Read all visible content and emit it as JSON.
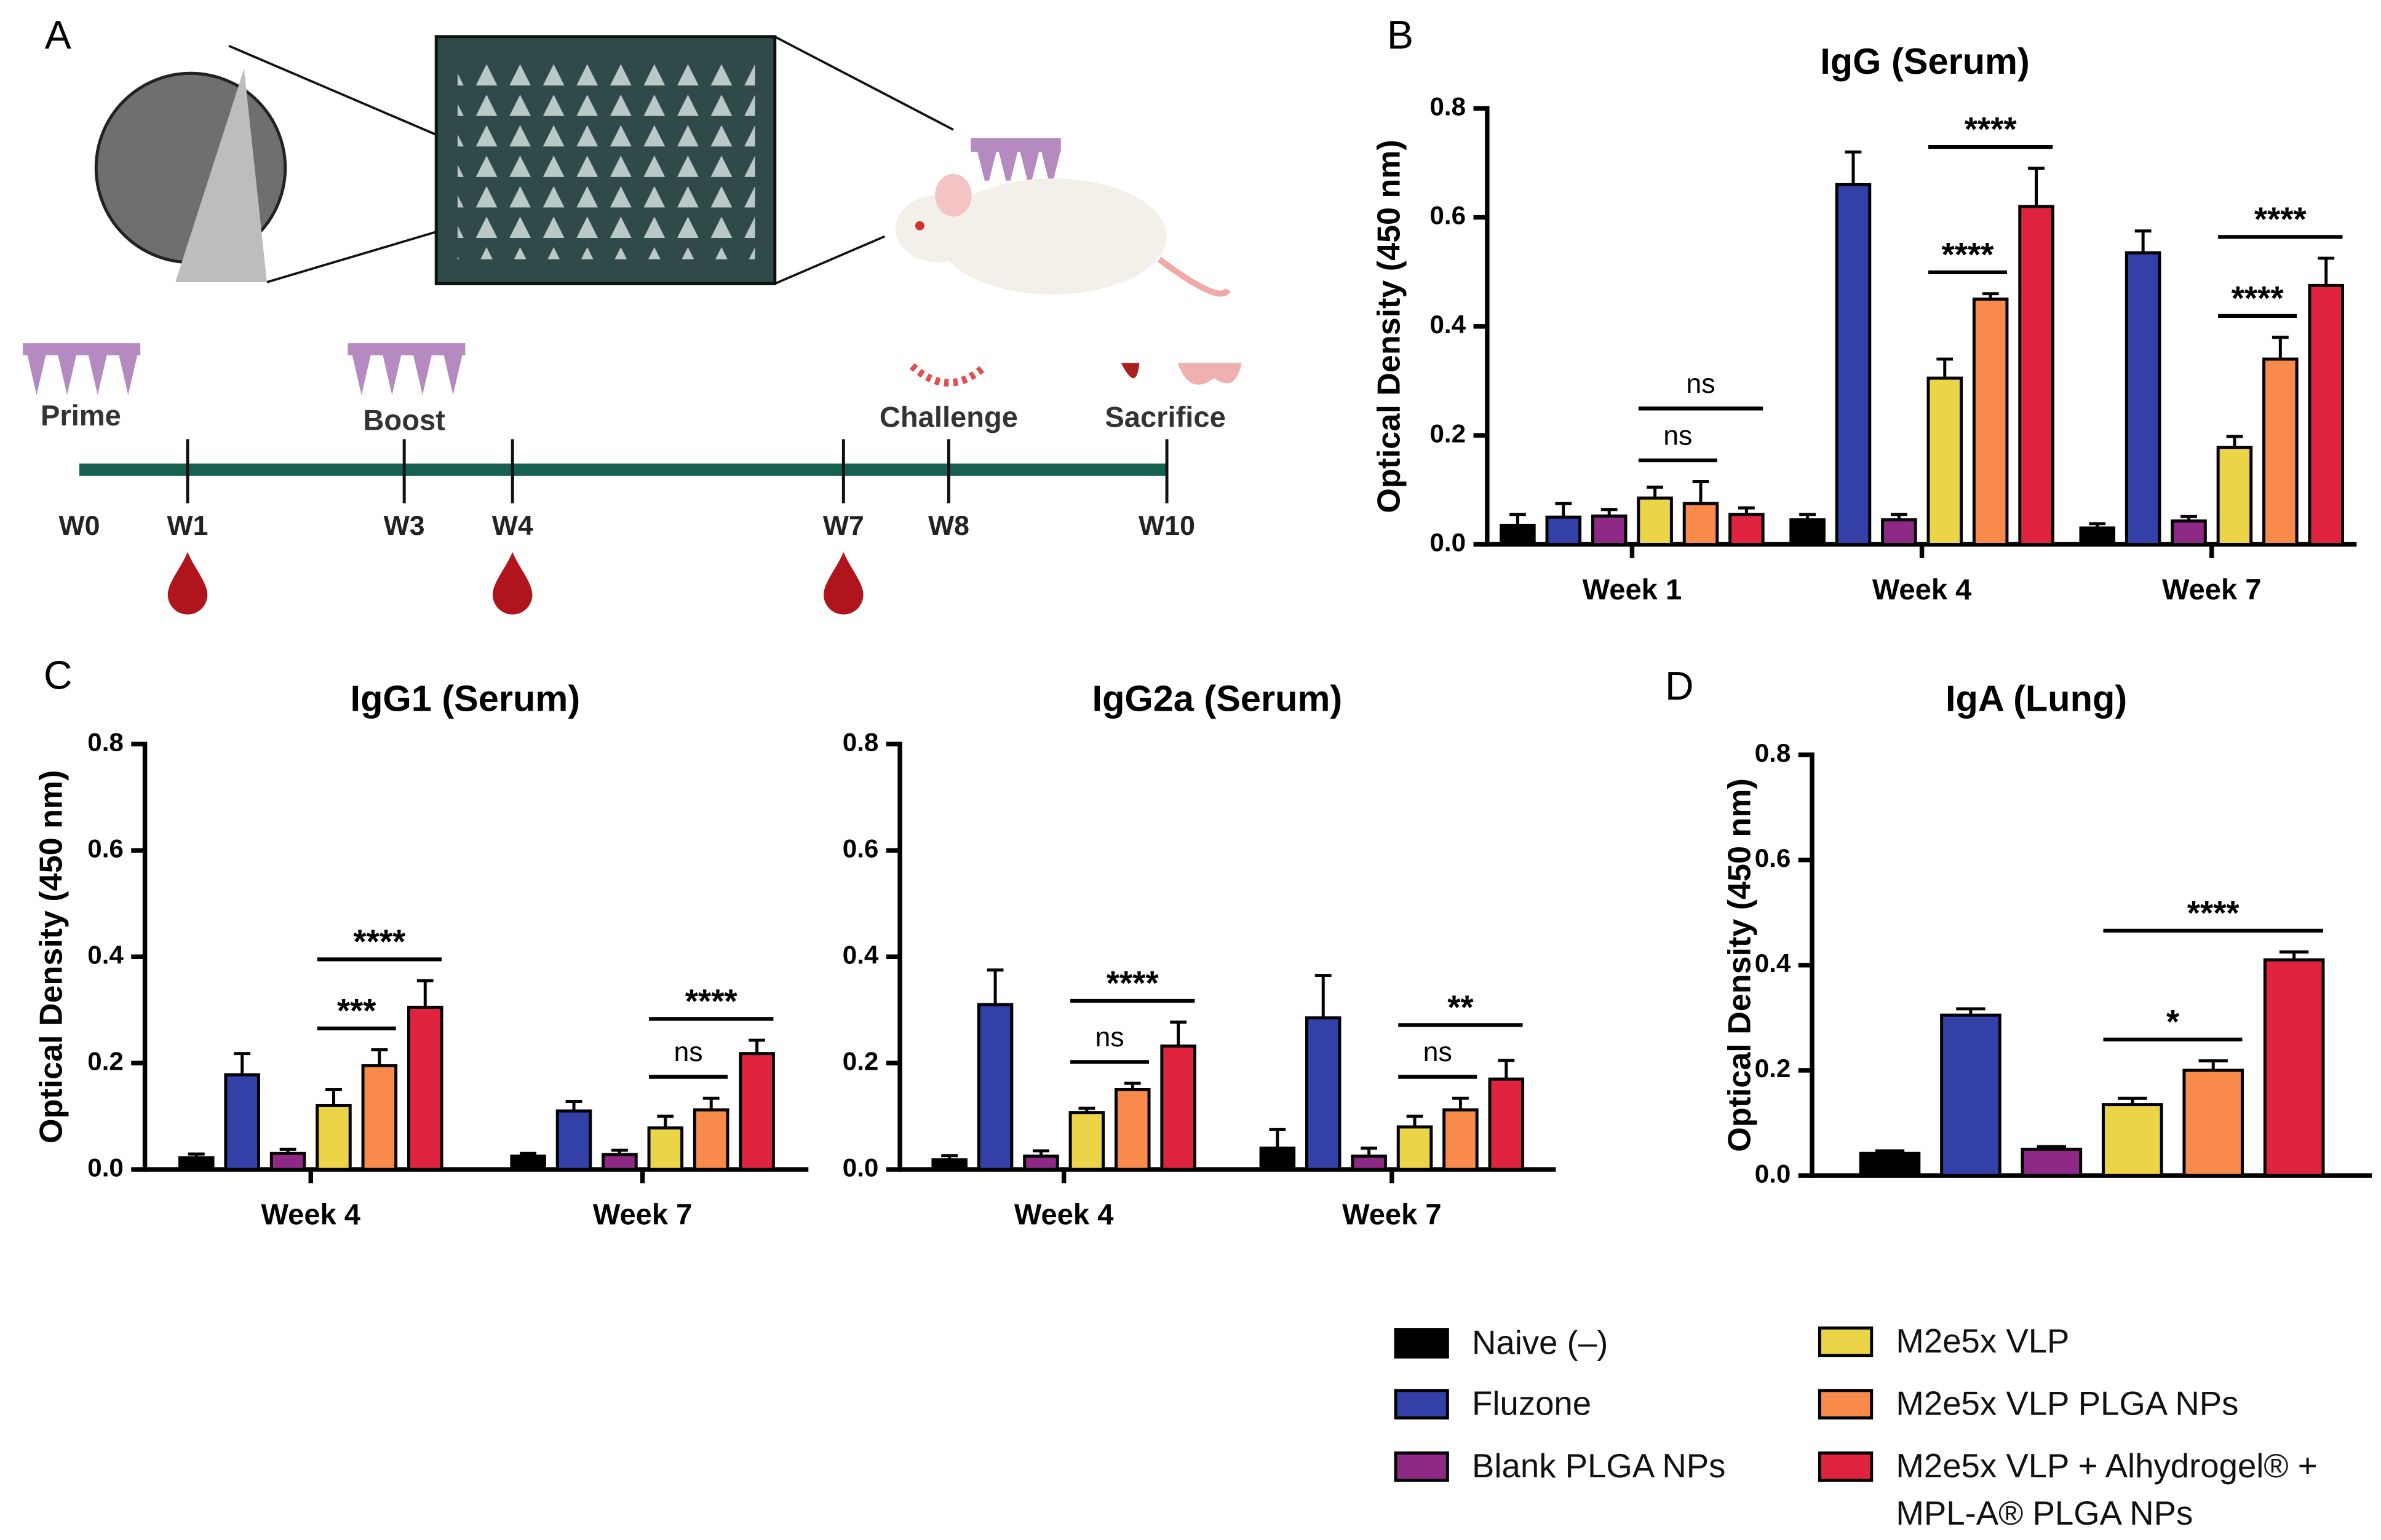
{
  "panel_labels": [
    "A",
    "B",
    "C",
    "D"
  ],
  "timeline": {
    "events": [
      "Prime",
      "Boost",
      "Challenge",
      "Sacrifice"
    ],
    "weeks": [
      "W0",
      "W1",
      "W3",
      "W4",
      "W7",
      "W8",
      "W10"
    ]
  },
  "chart_data": [
    {
      "type": "bar",
      "title": "IgG (Serum)",
      "ylabel": "Optical Density (450 nm)",
      "categories": [
        "Week 1",
        "Week 4",
        "Week 7"
      ],
      "ylim": [
        0,
        0.8
      ],
      "yticks": [
        {
          "value": 0,
          "label": "0.0"
        },
        {
          "value": 0.2,
          "label": "0.2"
        },
        {
          "value": 0.4,
          "label": "0.4"
        },
        {
          "value": 0.6,
          "label": "0.6"
        },
        {
          "value": 0.8,
          "label": "0.8"
        }
      ],
      "series": [
        {
          "name": "Naive (–)",
          "color": "#000000",
          "values": [
            0.035,
            0.045,
            0.03
          ],
          "errors": [
            0.02,
            0.01,
            0.008
          ]
        },
        {
          "name": "Fluzone",
          "color": "#3340a8",
          "values": [
            0.05,
            0.66,
            0.535
          ],
          "errors": [
            0.025,
            0.06,
            0.04
          ]
        },
        {
          "name": "Blank PLGA NPs",
          "color": "#8e2a86",
          "values": [
            0.052,
            0.045,
            0.043
          ],
          "errors": [
            0.012,
            0.01,
            0.008
          ]
        },
        {
          "name": "M2e5x VLP",
          "color": "#ecd448",
          "values": [
            0.085,
            0.305,
            0.178
          ],
          "errors": [
            0.02,
            0.035,
            0.02
          ]
        },
        {
          "name": "M2e5x VLP PLGA NPs",
          "color": "#f88a4c",
          "values": [
            0.075,
            0.45,
            0.34
          ],
          "errors": [
            0.04,
            0.01,
            0.04
          ]
        },
        {
          "name": "M2e5x VLP + Alhydrogel® + MPL-A® PLGA NPs",
          "color": "#e0243f",
          "values": [
            0.055,
            0.62,
            0.475
          ],
          "errors": [
            0.012,
            0.07,
            0.05
          ]
        }
      ],
      "annotations": [
        {
          "text": "ns",
          "category": 0,
          "from": 3,
          "to": 4
        },
        {
          "text": "ns",
          "category": 0,
          "from": 3,
          "to": 5
        },
        {
          "text": "****",
          "category": 1,
          "from": 3,
          "to": 4
        },
        {
          "text": "****",
          "category": 1,
          "from": 3,
          "to": 5
        },
        {
          "text": "****",
          "category": 2,
          "from": 3,
          "to": 4
        },
        {
          "text": "****",
          "category": 2,
          "from": 3,
          "to": 5
        }
      ]
    },
    {
      "type": "bar",
      "title": "IgG1 (Serum)",
      "ylabel": "Optical Density (450 nm)",
      "categories": [
        "Week 4",
        "Week 7"
      ],
      "ylim": [
        0,
        0.8
      ],
      "yticks": [
        {
          "value": 0,
          "label": "0.0"
        },
        {
          "value": 0.2,
          "label": "0.2"
        },
        {
          "value": 0.4,
          "label": "0.4"
        },
        {
          "value": 0.6,
          "label": "0.6"
        },
        {
          "value": 0.8,
          "label": "0.8"
        }
      ],
      "series": [
        {
          "name": "Naive (–)",
          "color": "#000000",
          "values": [
            0.022,
            0.025
          ],
          "errors": [
            0.007,
            0.005
          ]
        },
        {
          "name": "Fluzone",
          "color": "#3340a8",
          "values": [
            0.178,
            0.11
          ],
          "errors": [
            0.04,
            0.018
          ]
        },
        {
          "name": "Blank PLGA NPs",
          "color": "#8e2a86",
          "values": [
            0.03,
            0.028
          ],
          "errors": [
            0.008,
            0.008
          ]
        },
        {
          "name": "M2e5x VLP",
          "color": "#ecd448",
          "values": [
            0.12,
            0.078
          ],
          "errors": [
            0.03,
            0.022
          ]
        },
        {
          "name": "M2e5x VLP PLGA NPs",
          "color": "#f88a4c",
          "values": [
            0.195,
            0.112
          ],
          "errors": [
            0.03,
            0.022
          ]
        },
        {
          "name": "M2e5x VLP + Alhydrogel® + MPL-A® PLGA NPs",
          "color": "#e0243f",
          "values": [
            0.305,
            0.218
          ],
          "errors": [
            0.05,
            0.025
          ]
        }
      ],
      "annotations": [
        {
          "text": "***",
          "category": 0,
          "from": 3,
          "to": 4
        },
        {
          "text": "****",
          "category": 0,
          "from": 3,
          "to": 5
        },
        {
          "text": "ns",
          "category": 1,
          "from": 3,
          "to": 4
        },
        {
          "text": "****",
          "category": 1,
          "from": 3,
          "to": 5
        }
      ]
    },
    {
      "type": "bar",
      "title": "IgG2a (Serum)",
      "categories": [
        "Week 4",
        "Week 7"
      ],
      "ylim": [
        0,
        0.8
      ],
      "yticks": [
        {
          "value": 0,
          "label": "0.0"
        },
        {
          "value": 0.2,
          "label": "0.2"
        },
        {
          "value": 0.4,
          "label": "0.4"
        },
        {
          "value": 0.6,
          "label": "0.6"
        },
        {
          "value": 0.8,
          "label": "0.8"
        }
      ],
      "series": [
        {
          "name": "Naive (–)",
          "color": "#000000",
          "values": [
            0.018,
            0.04
          ],
          "errors": [
            0.008,
            0.035
          ]
        },
        {
          "name": "Fluzone",
          "color": "#3340a8",
          "values": [
            0.31,
            0.285
          ],
          "errors": [
            0.065,
            0.08
          ]
        },
        {
          "name": "Blank PLGA NPs",
          "color": "#8e2a86",
          "values": [
            0.025,
            0.025
          ],
          "errors": [
            0.01,
            0.015
          ]
        },
        {
          "name": "M2e5x VLP",
          "color": "#ecd448",
          "values": [
            0.107,
            0.08
          ],
          "errors": [
            0.008,
            0.02
          ]
        },
        {
          "name": "M2e5x VLP PLGA NPs",
          "color": "#f88a4c",
          "values": [
            0.15,
            0.112
          ],
          "errors": [
            0.012,
            0.022
          ]
        },
        {
          "name": "M2e5x VLP + Alhydrogel® + MPL-A® PLGA NPs",
          "color": "#e0243f",
          "values": [
            0.232,
            0.17
          ],
          "errors": [
            0.045,
            0.035
          ]
        }
      ],
      "annotations": [
        {
          "text": "ns",
          "category": 0,
          "from": 3,
          "to": 4
        },
        {
          "text": "****",
          "category": 0,
          "from": 3,
          "to": 5
        },
        {
          "text": "ns",
          "category": 1,
          "from": 3,
          "to": 4
        },
        {
          "text": "**",
          "category": 1,
          "from": 3,
          "to": 5
        }
      ]
    },
    {
      "type": "bar",
      "title": "IgA (Lung)",
      "ylabel": "Optical Density (450 nm)",
      "categories": [
        null
      ],
      "ylim": [
        0,
        0.8
      ],
      "yticks": [
        {
          "value": 0,
          "label": "0.0"
        },
        {
          "value": 0.2,
          "label": "0.2"
        },
        {
          "value": 0.4,
          "label": "0.4"
        },
        {
          "value": 0.6,
          "label": "0.6"
        },
        {
          "value": 0.8,
          "label": "0.8"
        }
      ],
      "series": [
        {
          "name": "Naive (–)",
          "color": "#000000",
          "values": [
            0.042
          ],
          "errors": [
            0.005
          ]
        },
        {
          "name": "Fluzone",
          "color": "#3340a8",
          "values": [
            0.305
          ],
          "errors": [
            0.012
          ]
        },
        {
          "name": "Blank PLGA NPs",
          "color": "#8e2a86",
          "values": [
            0.05
          ],
          "errors": [
            0.005
          ]
        },
        {
          "name": "M2e5x VLP",
          "color": "#ecd448",
          "values": [
            0.135
          ],
          "errors": [
            0.012
          ]
        },
        {
          "name": "M2e5x VLP PLGA NPs",
          "color": "#f88a4c",
          "values": [
            0.2
          ],
          "errors": [
            0.018
          ]
        },
        {
          "name": "M2e5x VLP + Alhydrogel® + MPL-A® PLGA NPs",
          "color": "#e0243f",
          "values": [
            0.41
          ],
          "errors": [
            0.015
          ]
        }
      ],
      "annotations": [
        {
          "text": "*",
          "category": 0,
          "from": 3,
          "to": 4
        },
        {
          "text": "****",
          "category": 0,
          "from": 3,
          "to": 5
        }
      ]
    }
  ]
}
